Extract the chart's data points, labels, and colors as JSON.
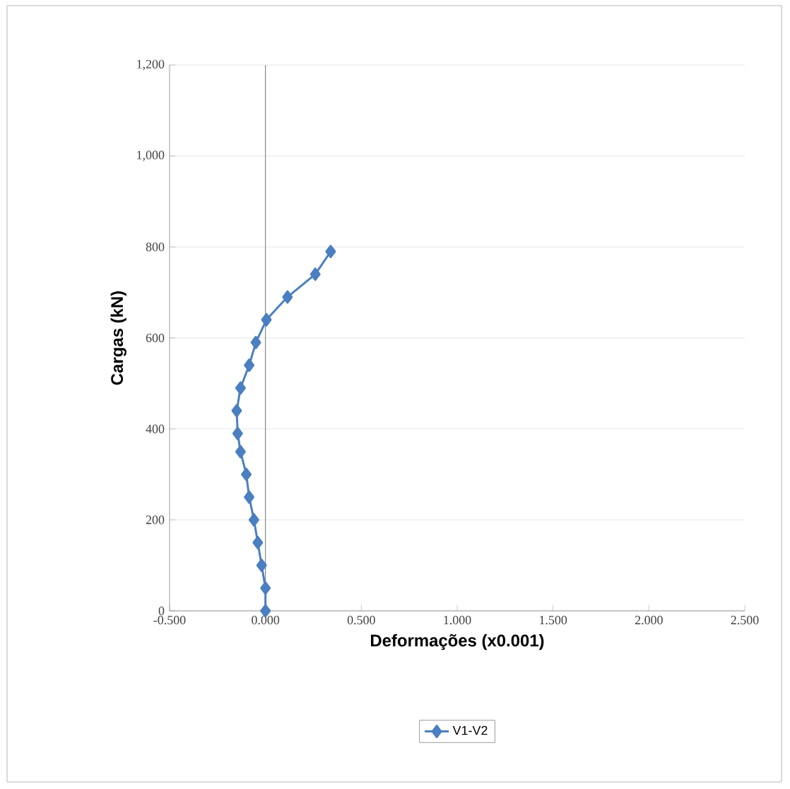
{
  "chart_data": {
    "type": "line",
    "xlabel": "Deformações (x0.001)",
    "ylabel": "Cargas (kN)",
    "xlim": [
      -0.5,
      2.5
    ],
    "ylim": [
      0,
      1200
    ],
    "xticks": [
      {
        "value": -0.5,
        "label": "-0.500"
      },
      {
        "value": 0,
        "label": "0.000"
      },
      {
        "value": 0.5,
        "label": "0.500"
      },
      {
        "value": 1,
        "label": "1.000"
      },
      {
        "value": 1.5,
        "label": "1.500"
      },
      {
        "value": 2,
        "label": "2.000"
      },
      {
        "value": 2.5,
        "label": "2.500"
      }
    ],
    "yticks": [
      0,
      200,
      400,
      600,
      800,
      {
        "value": 1000,
        "label": "1,000"
      },
      {
        "value": 1200,
        "label": "1,200"
      }
    ],
    "grid": "y",
    "legend": "bottom",
    "marker": "diamond",
    "series": [
      {
        "name": "V1-V2",
        "color": "#4a7fc1",
        "x": [
          0,
          0,
          -0.02,
          -0.04,
          -0.06,
          -0.085,
          -0.1,
          -0.13,
          -0.145,
          -0.15,
          -0.13,
          -0.085,
          -0.05,
          0.005,
          0.115,
          0.26,
          0.34
        ],
        "values": [
          0,
          50,
          100,
          150,
          200,
          250,
          300,
          350,
          390,
          440,
          490,
          540,
          590,
          640,
          690,
          740,
          790
        ]
      }
    ]
  }
}
